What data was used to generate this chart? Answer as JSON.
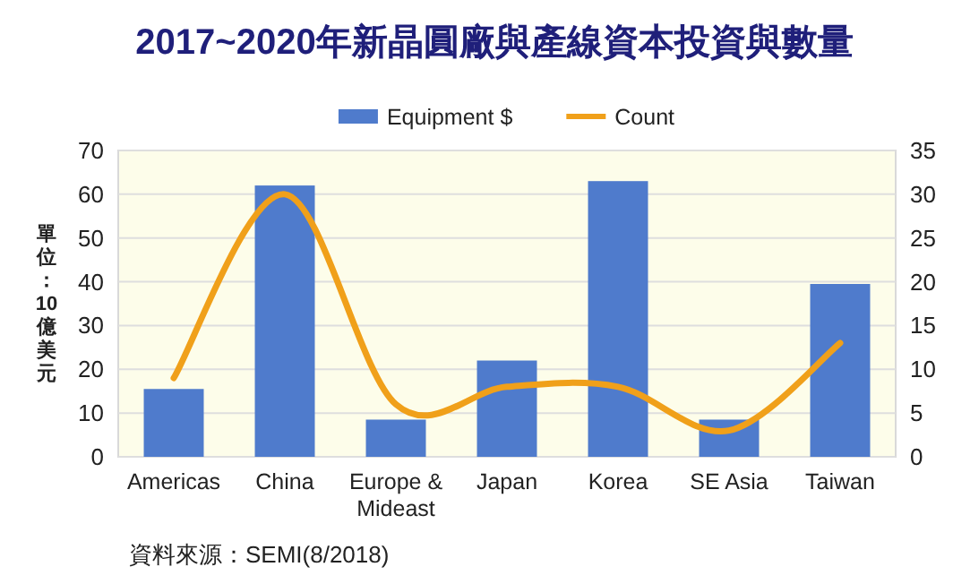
{
  "chart_data": {
    "type": "bar",
    "title": "2017~2020年新晶圓廠與產線資本投資與數量",
    "categories": [
      "Americas",
      "China",
      "Europe & Mideast",
      "Japan",
      "Korea",
      "SE Asia",
      "Taiwan"
    ],
    "series": [
      {
        "name": "Equipment $",
        "color": "#4f7bcc",
        "values": [
          15.5,
          62,
          8.5,
          22,
          63,
          8.5,
          39.5
        ]
      },
      {
        "name": "Count",
        "type": "line",
        "axis": "y2",
        "color": "#f0a01a",
        "values": [
          9,
          30,
          6,
          8,
          8,
          3,
          13
        ]
      }
    ],
    "ylabel": "單位：10億美元",
    "ylim": [
      0,
      70
    ],
    "yticks": [
      0,
      10,
      20,
      30,
      40,
      50,
      60,
      70
    ],
    "y2lim": [
      0,
      35
    ],
    "y2ticks": [
      0,
      5,
      10,
      15,
      20,
      25,
      30,
      35
    ],
    "grid": "y",
    "legend": "top",
    "annotations": [
      "資料來源：SEMI(8/2018)"
    ]
  }
}
